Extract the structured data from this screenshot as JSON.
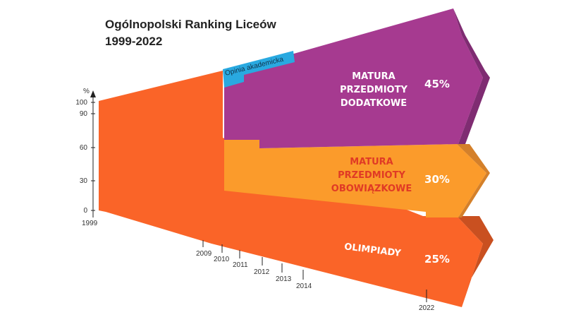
{
  "chart_data": {
    "type": "area",
    "title": "Ogólnopolski Ranking Liceów",
    "subtitle": "1999-2022",
    "ylabel": "%",
    "ylim": [
      0,
      100
    ],
    "y_ticks": [
      "100",
      "90",
      "60",
      "30",
      "0"
    ],
    "x_ticks": [
      "1999",
      "2009",
      "2010",
      "2011",
      "2012",
      "2013",
      "2014",
      "2022"
    ],
    "annotations": [
      "Opinia akademicka"
    ],
    "series": [
      {
        "name": "OLIMPIADY",
        "final_share": "25%",
        "color": "#fa6428"
      },
      {
        "name": "MATURA PRZEDMIOTY OBOWIĄZKOWE",
        "lines": [
          "MATURA",
          "PRZEDMIOTY",
          "OBOWIĄZKOWE"
        ],
        "final_share": "30%",
        "color": "#fb9b2b",
        "text_color": "#e03a25"
      },
      {
        "name": "MATURA PRZEDMIOTY DODATKOWE",
        "lines": [
          "MATURA",
          "PRZEDMIOTY",
          "DODATKOWE"
        ],
        "final_share": "45%",
        "color": "#a63a90",
        "text_color": "#ffffff"
      },
      {
        "name": "Opinia akademicka",
        "color": "#29a9e0"
      }
    ]
  }
}
